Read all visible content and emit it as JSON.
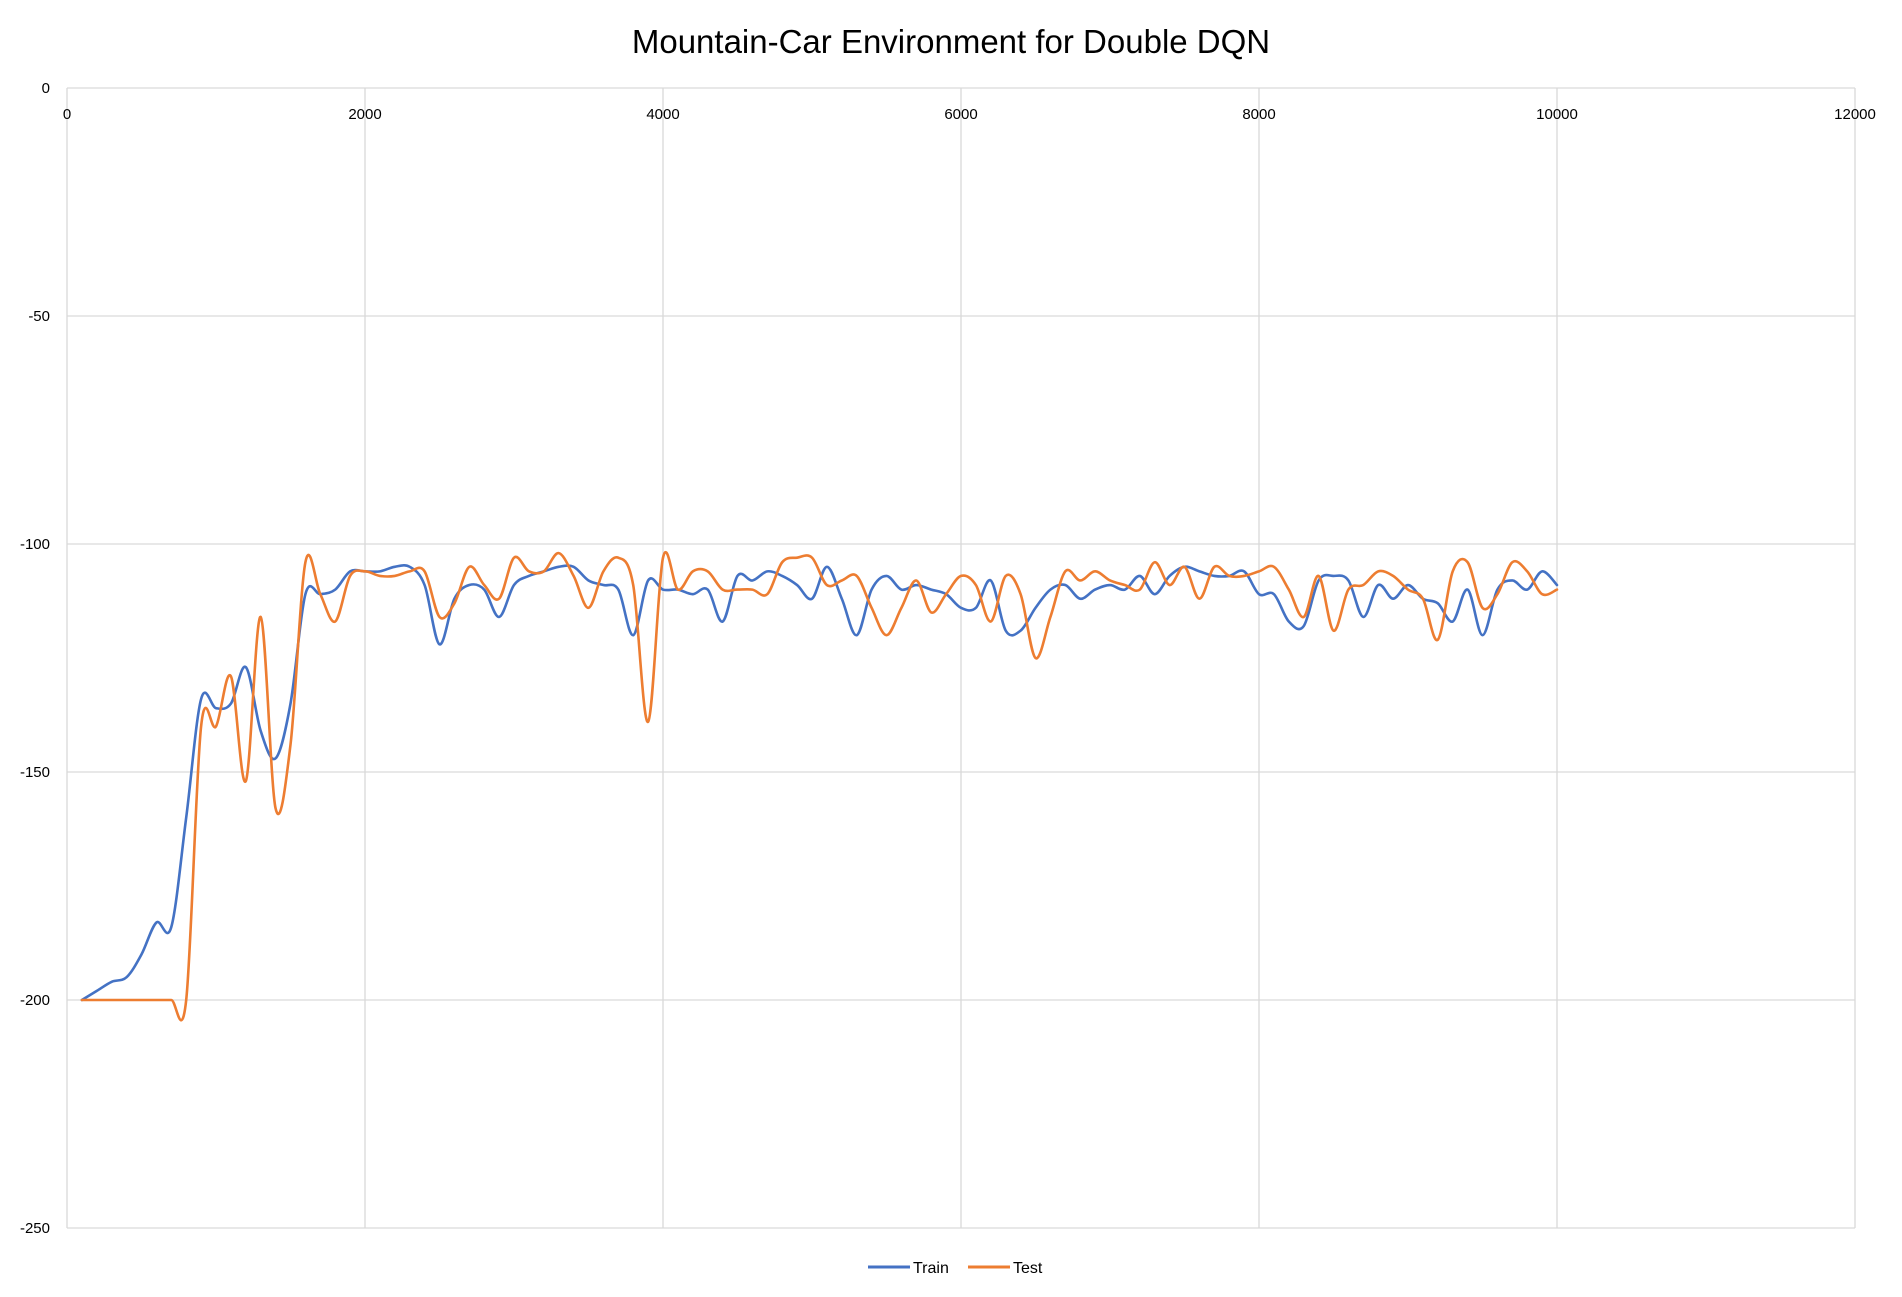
{
  "chart_data": {
    "type": "line",
    "title": "Mountain-Car Environment for Double DQN",
    "xlabel": "",
    "ylabel": "",
    "xlim": [
      0,
      12000
    ],
    "ylim": [
      -250,
      0
    ],
    "x_ticks": [
      0,
      2000,
      4000,
      6000,
      8000,
      10000,
      12000
    ],
    "y_ticks": [
      0,
      -50,
      -100,
      -150,
      -200,
      -250
    ],
    "x_tick_labels": [
      "0",
      "2000",
      "4000",
      "6000",
      "8000",
      "10000",
      "12000"
    ],
    "y_tick_labels": [
      "0",
      "-50",
      "-100",
      "-150",
      "-200",
      "-250"
    ],
    "x_axis_position": "top",
    "grid": true,
    "legend": "bottom",
    "smooth": true,
    "series": [
      {
        "name": "Train",
        "color": "#4472C4",
        "x": [
          100,
          200,
          300,
          400,
          500,
          600,
          700,
          800,
          900,
          1000,
          1100,
          1200,
          1300,
          1400,
          1500,
          1600,
          1700,
          1800,
          1900,
          2000,
          2100,
          2200,
          2300,
          2400,
          2500,
          2600,
          2700,
          2800,
          2900,
          3000,
          3100,
          3200,
          3300,
          3400,
          3500,
          3600,
          3700,
          3800,
          3900,
          4000,
          4100,
          4200,
          4300,
          4400,
          4500,
          4600,
          4700,
          4800,
          4900,
          5000,
          5100,
          5200,
          5300,
          5400,
          5500,
          5600,
          5700,
          5800,
          5900,
          6000,
          6100,
          6200,
          6300,
          6400,
          6500,
          6600,
          6700,
          6800,
          6900,
          7000,
          7100,
          7200,
          7300,
          7400,
          7500,
          7600,
          7700,
          7800,
          7900,
          8000,
          8100,
          8200,
          8300,
          8400,
          8500,
          8600,
          8700,
          8800,
          8900,
          9000,
          9100,
          9200,
          9300,
          9400,
          9500,
          9600,
          9700,
          9800,
          9900,
          10000
        ],
        "y": [
          -200,
          -198,
          -196,
          -195,
          -190,
          -183,
          -184,
          -160,
          -134,
          -136,
          -135,
          -127,
          -141,
          -147,
          -135,
          -111,
          -111,
          -110,
          -106,
          -106,
          -106,
          -105,
          -105,
          -109,
          -122,
          -112,
          -109,
          -110,
          -116,
          -109,
          -107,
          -106,
          -105,
          -105,
          -108,
          -109,
          -110,
          -120,
          -108,
          -110,
          -110,
          -111,
          -110,
          -117,
          -107,
          -108,
          -106,
          -107,
          -109,
          -112,
          -105,
          -112,
          -120,
          -110,
          -107,
          -110,
          -109,
          -110,
          -111,
          -114,
          -114,
          -108,
          -119,
          -119,
          -114,
          -110,
          -109,
          -112,
          -110,
          -109,
          -110,
          -107,
          -111,
          -107,
          -105,
          -106,
          -107,
          -107,
          -106,
          -111,
          -111,
          -117,
          -118,
          -108,
          -107,
          -108,
          -116,
          -109,
          -112,
          -109,
          -112,
          -113,
          -117,
          -110,
          -120,
          -110,
          -108,
          -110,
          -106,
          -109
        ]
      },
      {
        "name": "Test",
        "color": "#ED7D31",
        "x": [
          100,
          200,
          300,
          400,
          500,
          600,
          700,
          800,
          900,
          1000,
          1100,
          1200,
          1300,
          1400,
          1500,
          1600,
          1700,
          1800,
          1900,
          2000,
          2100,
          2200,
          2300,
          2400,
          2500,
          2600,
          2700,
          2800,
          2900,
          3000,
          3100,
          3200,
          3300,
          3400,
          3500,
          3600,
          3700,
          3800,
          3900,
          4000,
          4100,
          4200,
          4300,
          4400,
          4500,
          4600,
          4700,
          4800,
          4900,
          5000,
          5100,
          5200,
          5300,
          5400,
          5500,
          5600,
          5700,
          5800,
          5900,
          6000,
          6100,
          6200,
          6300,
          6400,
          6500,
          6600,
          6700,
          6800,
          6900,
          7000,
          7100,
          7200,
          7300,
          7400,
          7500,
          7600,
          7700,
          7800,
          7900,
          8000,
          8100,
          8200,
          8300,
          8400,
          8500,
          8600,
          8700,
          8800,
          8900,
          9000,
          9100,
          9200,
          9300,
          9400,
          9500,
          9600,
          9700,
          9800,
          9900,
          10000
        ],
        "y": [
          -200,
          -200,
          -200,
          -200,
          -200,
          -200,
          -200,
          -200,
          -140,
          -140,
          -129,
          -152,
          -116,
          -158,
          -144,
          -104,
          -111,
          -117,
          -107,
          -106,
          -107,
          -107,
          -106,
          -106,
          -116,
          -113,
          -105,
          -109,
          -112,
          -103,
          -106,
          -106,
          -102,
          -107,
          -114,
          -106,
          -103,
          -109,
          -139,
          -103,
          -110,
          -106,
          -106,
          -110,
          -110,
          -110,
          -111,
          -104,
          -103,
          -103,
          -109,
          -108,
          -107,
          -114,
          -120,
          -114,
          -108,
          -115,
          -111,
          -107,
          -109,
          -117,
          -107,
          -111,
          -125,
          -116,
          -106,
          -108,
          -106,
          -108,
          -109,
          -110,
          -104,
          -109,
          -105,
          -112,
          -105,
          -107,
          -107,
          -106,
          -105,
          -110,
          -116,
          -107,
          -119,
          -110,
          -109,
          -106,
          -107,
          -110,
          -112,
          -121,
          -106,
          -104,
          -114,
          -111,
          -104,
          -106,
          -111,
          -110
        ]
      }
    ]
  }
}
